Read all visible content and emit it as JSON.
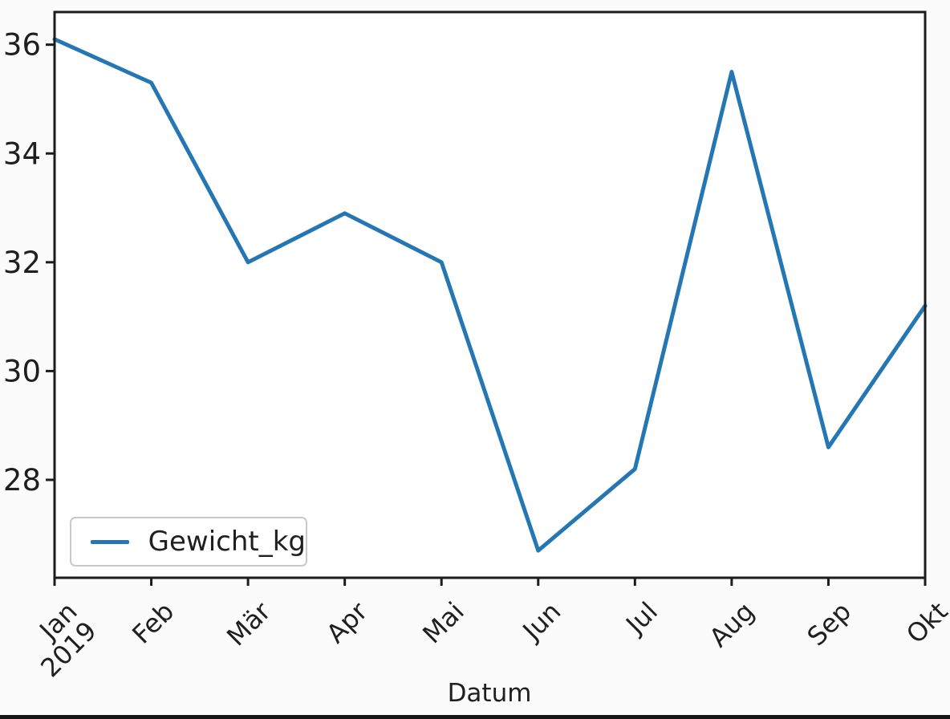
{
  "figure": {
    "xlabel": "Datum",
    "legend": {
      "label": "Gewicht_kg"
    }
  },
  "chart_data": {
    "type": "line",
    "title": "",
    "xlabel": "Datum",
    "ylabel": "",
    "categories": [
      "Jan\n2019",
      "Feb",
      "Mär",
      "Apr",
      "Mai",
      "Jun",
      "Jul",
      "Aug",
      "Sep",
      "Okt"
    ],
    "series": [
      {
        "name": "Gewicht_kg",
        "values": [
          36.1,
          35.3,
          32.0,
          32.9,
          32.0,
          26.7,
          28.2,
          35.5,
          28.6,
          31.2
        ]
      }
    ],
    "yticks": [
      28,
      30,
      32,
      34,
      36
    ],
    "ylim": [
      26.2,
      36.6
    ],
    "grid": false,
    "legend_position": "lower-left",
    "colors": {
      "line": "#2577b4",
      "axis": "#1c1c1c",
      "text": "#1f1f1f",
      "legend_border": "#c9c9c9",
      "background": "#fbfbfb"
    }
  }
}
